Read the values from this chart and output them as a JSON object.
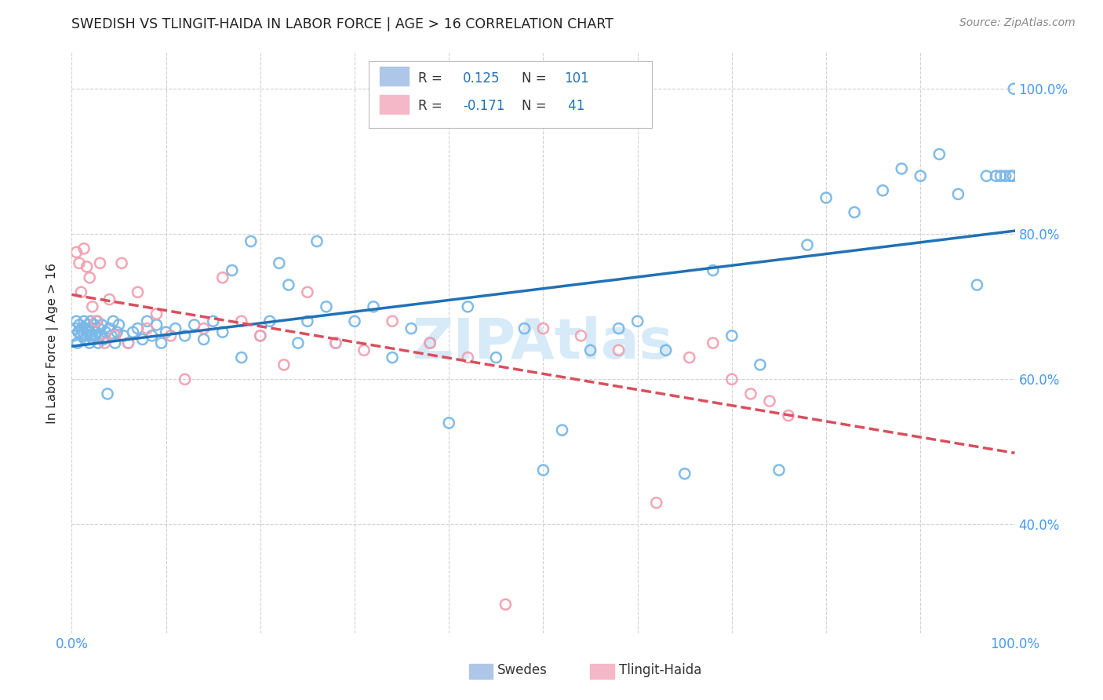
{
  "title": "SWEDISH VS TLINGIT-HAIDA IN LABOR FORCE | AGE > 16 CORRELATION CHART",
  "source": "Source: ZipAtlas.com",
  "ylabel": "In Labor Force | Age > 16",
  "R_swedish": 0.125,
  "N_swedish": 101,
  "R_tlingit": -0.171,
  "N_tlingit": 41,
  "blue_scatter_color": "#7ab8e8",
  "pink_scatter_color": "#f4a0b0",
  "blue_line_color": "#2171b5",
  "pink_line_color": "#d94f5c",
  "blue_legend_color": "#aec7e8",
  "pink_legend_color": "#f4b8c8",
  "background_color": "#ffffff",
  "grid_color": "#cccccc",
  "axis_label_color": "#4499ff",
  "title_color": "#222222",
  "watermark_color": "#d6eaf8",
  "swedish_x": [
    0.002,
    0.004,
    0.005,
    0.006,
    0.007,
    0.008,
    0.01,
    0.011,
    0.012,
    0.013,
    0.014,
    0.015,
    0.016,
    0.017,
    0.018,
    0.019,
    0.02,
    0.021,
    0.022,
    0.023,
    0.024,
    0.025,
    0.026,
    0.027,
    0.028,
    0.029,
    0.03,
    0.032,
    0.034,
    0.036,
    0.038,
    0.04,
    0.042,
    0.044,
    0.046,
    0.048,
    0.05,
    0.055,
    0.06,
    0.065,
    0.07,
    0.075,
    0.08,
    0.085,
    0.09,
    0.095,
    0.1,
    0.11,
    0.12,
    0.13,
    0.14,
    0.15,
    0.16,
    0.17,
    0.18,
    0.19,
    0.2,
    0.21,
    0.22,
    0.23,
    0.24,
    0.25,
    0.26,
    0.27,
    0.28,
    0.3,
    0.32,
    0.34,
    0.36,
    0.38,
    0.4,
    0.42,
    0.45,
    0.48,
    0.5,
    0.52,
    0.55,
    0.58,
    0.6,
    0.63,
    0.65,
    0.68,
    0.7,
    0.73,
    0.75,
    0.78,
    0.8,
    0.83,
    0.86,
    0.88,
    0.9,
    0.92,
    0.94,
    0.96,
    0.97,
    0.98,
    0.985,
    0.99,
    0.995,
    0.998,
    0.999
  ],
  "swedish_y": [
    0.66,
    0.67,
    0.68,
    0.65,
    0.665,
    0.675,
    0.66,
    0.67,
    0.665,
    0.68,
    0.655,
    0.67,
    0.66,
    0.675,
    0.665,
    0.65,
    0.68,
    0.66,
    0.67,
    0.655,
    0.675,
    0.66,
    0.665,
    0.68,
    0.65,
    0.67,
    0.66,
    0.675,
    0.655,
    0.665,
    0.58,
    0.67,
    0.66,
    0.68,
    0.65,
    0.665,
    0.675,
    0.66,
    0.65,
    0.665,
    0.67,
    0.655,
    0.68,
    0.66,
    0.675,
    0.65,
    0.665,
    0.67,
    0.66,
    0.675,
    0.655,
    0.68,
    0.665,
    0.75,
    0.63,
    0.79,
    0.66,
    0.68,
    0.76,
    0.73,
    0.65,
    0.68,
    0.79,
    0.7,
    0.65,
    0.68,
    0.7,
    0.63,
    0.67,
    0.65,
    0.54,
    0.7,
    0.63,
    0.67,
    0.475,
    0.53,
    0.64,
    0.67,
    0.68,
    0.64,
    0.47,
    0.75,
    0.66,
    0.62,
    0.475,
    0.785,
    0.85,
    0.83,
    0.86,
    0.89,
    0.88,
    0.91,
    0.855,
    0.73,
    0.88,
    0.88,
    0.88,
    0.88,
    0.88,
    0.88,
    1.0
  ],
  "tlingit_x": [
    0.005,
    0.008,
    0.01,
    0.013,
    0.016,
    0.019,
    0.022,
    0.026,
    0.03,
    0.035,
    0.04,
    0.046,
    0.053,
    0.06,
    0.07,
    0.08,
    0.09,
    0.105,
    0.12,
    0.14,
    0.16,
    0.18,
    0.2,
    0.225,
    0.25,
    0.28,
    0.31,
    0.34,
    0.38,
    0.42,
    0.46,
    0.5,
    0.54,
    0.58,
    0.62,
    0.655,
    0.68,
    0.7,
    0.72,
    0.74,
    0.76
  ],
  "tlingit_y": [
    0.775,
    0.76,
    0.72,
    0.78,
    0.755,
    0.74,
    0.7,
    0.68,
    0.76,
    0.65,
    0.71,
    0.66,
    0.76,
    0.65,
    0.72,
    0.67,
    0.69,
    0.66,
    0.6,
    0.67,
    0.74,
    0.68,
    0.66,
    0.62,
    0.72,
    0.65,
    0.64,
    0.68,
    0.65,
    0.63,
    0.29,
    0.67,
    0.66,
    0.64,
    0.43,
    0.63,
    0.65,
    0.6,
    0.58,
    0.57,
    0.55
  ],
  "xlim": [
    0.0,
    1.0
  ],
  "ylim": [
    0.25,
    1.05
  ],
  "yticks": [
    0.4,
    0.6,
    0.8,
    1.0
  ],
  "ytick_labels": [
    "40.0%",
    "60.0%",
    "80.0%",
    "100.0%"
  ]
}
